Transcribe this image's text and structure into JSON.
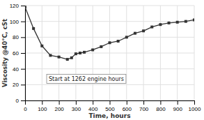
{
  "chart_data": {
    "type": "line",
    "x": [
      0,
      50,
      100,
      150,
      200,
      250,
      275,
      300,
      325,
      350,
      400,
      450,
      500,
      550,
      600,
      650,
      700,
      750,
      800,
      850,
      900,
      950,
      1000
    ],
    "values": [
      118,
      91,
      69,
      57,
      55,
      52,
      54,
      59,
      60,
      61,
      64,
      68,
      73,
      75,
      80,
      85,
      88,
      93,
      96,
      98,
      99,
      100,
      102
    ],
    "color": "#333333",
    "marker": "square",
    "xlabel": "Time, hours",
    "ylabel": "Viscosity @40°C, cSt",
    "annotation": "Start at 1262 engine hours",
    "xlim": [
      0,
      1000
    ],
    "ylim": [
      0,
      120
    ],
    "xticks": [
      0,
      100,
      200,
      300,
      400,
      500,
      600,
      700,
      800,
      900,
      1000
    ],
    "yticks": [
      0,
      20,
      40,
      60,
      80,
      100,
      120
    ],
    "grid": true
  }
}
